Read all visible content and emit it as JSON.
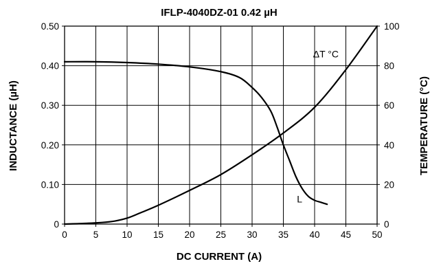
{
  "chart_data": {
    "type": "line",
    "title": "IFLP-4040DZ-01 0.42 µH",
    "xlabel": "DC CURRENT (A)",
    "ylabel": "INDUCTANCE (µH)",
    "y2label": "TEMPERATURE (°C)",
    "xlim": [
      0,
      50
    ],
    "ylim": [
      0,
      0.5
    ],
    "y2lim": [
      0,
      100
    ],
    "grid": true,
    "x_ticks": [
      {
        "value": 0,
        "label": "0"
      },
      {
        "value": 5,
        "label": "5"
      },
      {
        "value": 10,
        "label": "10"
      },
      {
        "value": 15,
        "label": "15"
      },
      {
        "value": 20,
        "label": "20"
      },
      {
        "value": 25,
        "label": "25"
      },
      {
        "value": 30,
        "label": "30"
      },
      {
        "value": 35,
        "label": "35"
      },
      {
        "value": 40,
        "label": "40"
      },
      {
        "value": 45,
        "label": "45"
      },
      {
        "value": 50,
        "label": "50"
      }
    ],
    "y_ticks": [
      {
        "value": 0,
        "label": "0"
      },
      {
        "value": 0.1,
        "label": "0.10"
      },
      {
        "value": 0.2,
        "label": "0.20"
      },
      {
        "value": 0.3,
        "label": "0.30"
      },
      {
        "value": 0.4,
        "label": "0.40"
      },
      {
        "value": 0.5,
        "label": "0.50"
      }
    ],
    "y2_ticks": [
      {
        "value": 0,
        "label": "0"
      },
      {
        "value": 20,
        "label": "20"
      },
      {
        "value": 40,
        "label": "40"
      },
      {
        "value": 60,
        "label": "60"
      },
      {
        "value": 80,
        "label": "80"
      },
      {
        "value": 100,
        "label": "100"
      }
    ],
    "series": [
      {
        "name": "L",
        "axis": "left",
        "x": [
          0,
          5,
          10,
          15,
          20,
          25,
          28,
          30,
          31.5,
          33,
          34,
          35,
          36,
          37,
          38,
          39,
          40,
          41,
          42
        ],
        "values": [
          0.41,
          0.41,
          0.408,
          0.404,
          0.397,
          0.385,
          0.37,
          0.345,
          0.32,
          0.285,
          0.245,
          0.2,
          0.16,
          0.12,
          0.09,
          0.07,
          0.06,
          0.055,
          0.05
        ]
      },
      {
        "name": "ΔT °C",
        "axis": "right",
        "x": [
          0,
          3,
          6,
          8,
          10,
          12,
          15,
          20,
          25,
          30,
          35,
          40,
          45,
          50
        ],
        "values": [
          0,
          0.3,
          0.8,
          1.5,
          3,
          5.5,
          9.5,
          17,
          25,
          35,
          46,
          59,
          78,
          100
        ]
      }
    ],
    "annotations": [
      {
        "text": "ΔT °C",
        "x": 41.8,
        "y2": 86
      },
      {
        "text": "L",
        "x": 37.6,
        "y": 0.063
      }
    ]
  }
}
